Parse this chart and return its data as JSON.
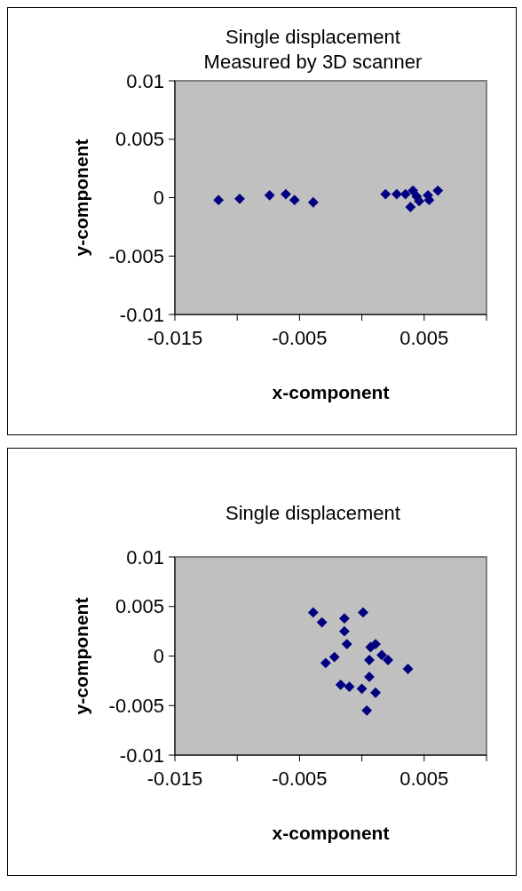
{
  "chart_data": [
    {
      "type": "scatter",
      "title": "Single displacement",
      "subtitle": "Measured by 3D scanner",
      "xlabel": "x-component",
      "ylabel": "y-component",
      "xlim": [
        -0.015,
        0.01
      ],
      "xticks": [
        -0.015,
        {
          "value": -0.01,
          "label": null
        },
        -0.005,
        {
          "value": 0,
          "label": null
        },
        0.005,
        {
          "value": 0.01,
          "label": null
        }
      ],
      "ylim": [
        -0.01,
        0.01
      ],
      "yticks": [
        -0.01,
        -0.005,
        0,
        0.005,
        0.01
      ],
      "marker": "diamond",
      "series": [
        {
          "color": "#000080",
          "x": [
            -0.0115,
            -0.0098,
            -0.0074,
            -0.0061,
            -0.0054,
            -0.0039,
            0.0019,
            0.0028,
            0.0035,
            0.0041,
            0.0039,
            0.0046,
            0.0053,
            0.0054,
            0.0061,
            0.0044
          ],
          "values": [
            -0.0002,
            -0.0001,
            0.0002,
            0.0003,
            -0.0002,
            -0.0004,
            0.0003,
            0.0003,
            0.0003,
            0.0006,
            -0.0008,
            -0.0003,
            0.0002,
            -0.0002,
            0.0006,
            0.0001
          ]
        }
      ]
    },
    {
      "type": "scatter",
      "title": "Single displacement",
      "xlabel": "x-component",
      "ylabel": "y-component",
      "xlim": [
        -0.015,
        0.01
      ],
      "xticks": [
        -0.015,
        {
          "value": -0.01,
          "label": null
        },
        -0.005,
        {
          "value": 0,
          "label": null
        },
        0.005,
        {
          "value": 0.01,
          "label": null
        }
      ],
      "ylim": [
        -0.01,
        0.01
      ],
      "yticks": [
        -0.01,
        -0.005,
        0,
        0.005,
        0.01
      ],
      "marker": "diamond",
      "series": [
        {
          "color": "#000080",
          "x": [
            -0.0039,
            -0.0032,
            -0.0014,
            0.0001,
            -0.0014,
            -0.0012,
            0.0007,
            0.0011,
            0.0016,
            0.0021,
            -0.0022,
            -0.0029,
            0.0006,
            0.0037,
            0.0006,
            -0.0017,
            -0.001,
            0.0,
            0.0011,
            0.0004
          ],
          "values": [
            0.0044,
            0.0034,
            0.0038,
            0.0044,
            0.0025,
            0.0012,
            0.0009,
            0.0012,
            0.0001,
            -0.0004,
            -0.0001,
            -0.0007,
            -0.0004,
            -0.0013,
            -0.0021,
            -0.0029,
            -0.0031,
            -0.0033,
            -0.0037,
            -0.0055
          ]
        }
      ]
    }
  ]
}
